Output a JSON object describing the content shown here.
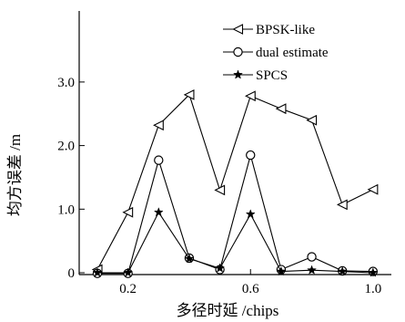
{
  "chart_data": {
    "type": "line",
    "xlabel": "多径时延 /chips",
    "ylabel": "均方误差 /m",
    "x_ticks": [
      "0.2",
      "0.6",
      "1.0"
    ],
    "y_ticks": [
      "0",
      "1.0",
      "2.0",
      "3.0"
    ],
    "xlim": [
      0.08,
      1.02
    ],
    "ylim": [
      0,
      3.8
    ],
    "grid": false,
    "legend_position": "top-right",
    "x": [
      0.1,
      0.2,
      0.3,
      0.4,
      0.5,
      0.6,
      0.7,
      0.8,
      0.9,
      1.0
    ],
    "series": [
      {
        "name": "BPSK-like",
        "marker": "triangle-left",
        "values": [
          0.05,
          0.95,
          2.32,
          2.8,
          1.3,
          2.78,
          2.58,
          2.4,
          1.07,
          1.31
        ]
      },
      {
        "name": "dual estimate",
        "marker": "circle",
        "values": [
          -0.01,
          -0.01,
          1.77,
          0.23,
          0.05,
          1.85,
          0.05,
          0.25,
          0.03,
          0.02
        ]
      },
      {
        "name": "SPCS",
        "marker": "star",
        "values": [
          0.0,
          0.0,
          0.95,
          0.22,
          0.07,
          0.92,
          0.02,
          0.04,
          0.02,
          0.0
        ]
      }
    ]
  }
}
